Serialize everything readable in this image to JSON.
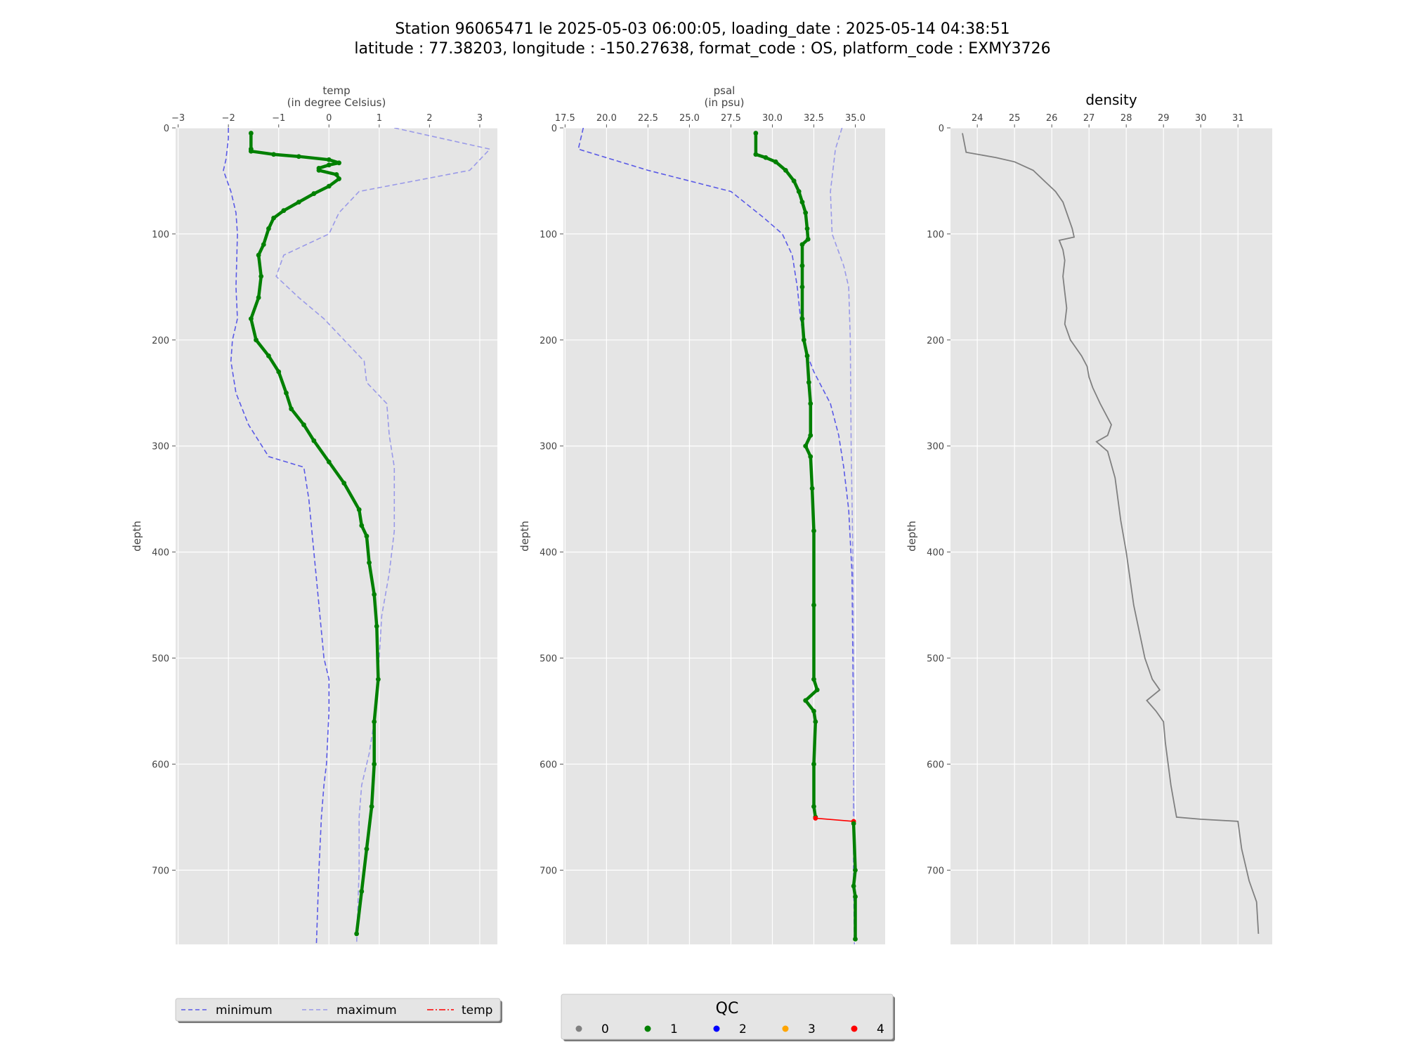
{
  "title": {
    "line1": "Station 96065471 le 2025-05-03 06:00:05, loading_date : 2025-05-14 04:38:51",
    "line2": "latitude : 77.38203, longitude : -150.27638, format_code : OS, platform_code : EXMY3726"
  },
  "colors": {
    "panel_bg": "#e5e5e5",
    "grid": "#ffffff",
    "minimum": "#5a5ae6",
    "maximum": "#9a9ae8",
    "qc0": "#808080",
    "qc1": "#008000",
    "qc2": "#0000ff",
    "qc3": "#ffa500",
    "qc4": "#ff0000",
    "density": "#808080"
  },
  "legend_lines": {
    "items": [
      {
        "label": "minimum",
        "style": "dashed",
        "color": "#5a5ae6"
      },
      {
        "label": "maximum",
        "style": "dashed",
        "color": "#9a9ae8"
      },
      {
        "label": "temp",
        "style": "dashdot",
        "color": "#ff0000"
      }
    ]
  },
  "legend_qc": {
    "title": "QC",
    "items": [
      {
        "label": "0",
        "color": "#808080"
      },
      {
        "label": "1",
        "color": "#008000"
      },
      {
        "label": "2",
        "color": "#0000ff"
      },
      {
        "label": "3",
        "color": "#ffa500"
      },
      {
        "label": "4",
        "color": "#ff0000"
      }
    ]
  },
  "chart_data": [
    {
      "type": "line",
      "name": "temp",
      "xlabel": "temp",
      "xlabel_unit": "(in degree Celsius)",
      "ylabel": "depth",
      "xlim": [
        -3.05,
        3.35
      ],
      "ylim": [
        770,
        0
      ],
      "xticks": [
        -3,
        -2,
        -1,
        0,
        1,
        2,
        3
      ],
      "yticks": [
        0,
        100,
        200,
        300,
        400,
        500,
        600,
        700
      ],
      "xaxis_position": "top",
      "grid": true,
      "series": [
        {
          "role": "minimum",
          "style": "dashed",
          "points": [
            [
              -2.0,
              0
            ],
            [
              -2.0,
              10
            ],
            [
              -2.05,
              30
            ],
            [
              -2.1,
              40
            ],
            [
              -1.95,
              60
            ],
            [
              -1.85,
              80
            ],
            [
              -1.82,
              100
            ],
            [
              -1.85,
              150
            ],
            [
              -1.82,
              180
            ],
            [
              -1.92,
              200
            ],
            [
              -1.95,
              220
            ],
            [
              -1.85,
              250
            ],
            [
              -1.6,
              280
            ],
            [
              -1.2,
              310
            ],
            [
              -0.5,
              320
            ],
            [
              -0.4,
              350
            ],
            [
              -0.3,
              400
            ],
            [
              -0.2,
              450
            ],
            [
              -0.1,
              500
            ],
            [
              0.0,
              520
            ],
            [
              0.0,
              550
            ],
            [
              -0.05,
              600
            ],
            [
              -0.1,
              620
            ],
            [
              -0.15,
              650
            ],
            [
              -0.2,
              700
            ],
            [
              -0.25,
              770
            ]
          ]
        },
        {
          "role": "maximum",
          "style": "dashed",
          "points": [
            [
              1.3,
              0
            ],
            [
              3.2,
              20
            ],
            [
              2.8,
              40
            ],
            [
              0.6,
              60
            ],
            [
              0.2,
              80
            ],
            [
              0.0,
              100
            ],
            [
              -0.9,
              120
            ],
            [
              -1.05,
              140
            ],
            [
              -0.6,
              160
            ],
            [
              -0.1,
              180
            ],
            [
              0.3,
              200
            ],
            [
              0.7,
              220
            ],
            [
              0.75,
              240
            ],
            [
              1.15,
              260
            ],
            [
              1.2,
              290
            ],
            [
              1.3,
              320
            ],
            [
              1.3,
              380
            ],
            [
              1.2,
              420
            ],
            [
              1.05,
              460
            ],
            [
              1.0,
              500
            ],
            [
              0.9,
              560
            ],
            [
              0.8,
              590
            ],
            [
              0.65,
              620
            ],
            [
              0.6,
              650
            ],
            [
              0.6,
              700
            ],
            [
              0.55,
              770
            ]
          ]
        },
        {
          "role": "temp",
          "qc": 1,
          "points": [
            [
              -1.55,
              5
            ],
            [
              -1.55,
              20
            ],
            [
              -1.55,
              22
            ],
            [
              -1.1,
              25
            ],
            [
              -0.6,
              27
            ],
            [
              0.0,
              30
            ],
            [
              0.2,
              33
            ],
            [
              0.0,
              35
            ],
            [
              -0.2,
              38
            ],
            [
              -0.2,
              40
            ],
            [
              0.15,
              44
            ],
            [
              0.2,
              48
            ],
            [
              0.0,
              55
            ],
            [
              -0.3,
              62
            ],
            [
              -0.6,
              70
            ],
            [
              -0.9,
              78
            ],
            [
              -1.1,
              85
            ],
            [
              -1.2,
              95
            ],
            [
              -1.3,
              110
            ],
            [
              -1.4,
              120
            ],
            [
              -1.35,
              140
            ],
            [
              -1.4,
              160
            ],
            [
              -1.55,
              180
            ],
            [
              -1.45,
              200
            ],
            [
              -1.2,
              215
            ],
            [
              -1.0,
              230
            ],
            [
              -0.85,
              250
            ],
            [
              -0.75,
              265
            ],
            [
              -0.5,
              280
            ],
            [
              -0.3,
              295
            ],
            [
              0.0,
              315
            ],
            [
              0.3,
              335
            ],
            [
              0.6,
              360
            ],
            [
              0.65,
              375
            ],
            [
              0.75,
              385
            ],
            [
              0.8,
              410
            ],
            [
              0.9,
              440
            ],
            [
              0.95,
              470
            ],
            [
              0.98,
              520
            ],
            [
              0.9,
              560
            ],
            [
              0.9,
              600
            ],
            [
              0.85,
              640
            ],
            [
              0.75,
              680
            ],
            [
              0.65,
              720
            ],
            [
              0.55,
              760
            ]
          ]
        }
      ]
    },
    {
      "type": "line",
      "name": "psal",
      "xlabel": "psal",
      "xlabel_unit": "(in psu)",
      "ylabel": "depth",
      "xlim": [
        17.4,
        36.8
      ],
      "ylim": [
        770,
        0
      ],
      "xticks": [
        17.5,
        20.0,
        22.5,
        25.0,
        27.5,
        30.0,
        32.5,
        35.0
      ],
      "xtick_labels": [
        "17.5",
        "20.0",
        "22.5",
        "25.0",
        "27.5",
        "30.0",
        "32.5",
        "35.0"
      ],
      "yticks": [
        0,
        100,
        200,
        300,
        400,
        500,
        600,
        700
      ],
      "xaxis_position": "top",
      "grid": true,
      "series": [
        {
          "role": "minimum",
          "style": "dashed",
          "points": [
            [
              18.6,
              0
            ],
            [
              18.3,
              20
            ],
            [
              22.5,
              40
            ],
            [
              27.5,
              60
            ],
            [
              29.5,
              85
            ],
            [
              30.6,
              100
            ],
            [
              31.2,
              120
            ],
            [
              31.5,
              150
            ],
            [
              31.7,
              180
            ],
            [
              32.0,
              210
            ],
            [
              32.5,
              230
            ],
            [
              33.5,
              260
            ],
            [
              34.0,
              290
            ],
            [
              34.3,
              320
            ],
            [
              34.6,
              360
            ],
            [
              34.8,
              420
            ],
            [
              34.85,
              500
            ],
            [
              34.9,
              600
            ],
            [
              34.9,
              700
            ],
            [
              34.95,
              770
            ]
          ]
        },
        {
          "role": "maximum",
          "style": "dashed",
          "points": [
            [
              34.2,
              0
            ],
            [
              33.8,
              20
            ],
            [
              33.5,
              60
            ],
            [
              33.6,
              100
            ],
            [
              34.3,
              130
            ],
            [
              34.6,
              150
            ],
            [
              34.7,
              200
            ],
            [
              34.75,
              300
            ],
            [
              34.85,
              400
            ],
            [
              34.9,
              500
            ],
            [
              34.9,
              600
            ],
            [
              34.95,
              700
            ],
            [
              34.95,
              770
            ]
          ]
        },
        {
          "role": "psal",
          "qc": 1,
          "points": [
            [
              29.0,
              5
            ],
            [
              29.0,
              25
            ],
            [
              29.6,
              28
            ],
            [
              30.2,
              32
            ],
            [
              30.8,
              40
            ],
            [
              31.3,
              50
            ],
            [
              31.6,
              60
            ],
            [
              31.8,
              70
            ],
            [
              32.0,
              80
            ],
            [
              32.1,
              95
            ],
            [
              32.15,
              105
            ],
            [
              31.8,
              110
            ],
            [
              31.8,
              130
            ],
            [
              31.8,
              150
            ],
            [
              31.8,
              180
            ],
            [
              31.9,
              200
            ],
            [
              32.1,
              215
            ],
            [
              32.2,
              240
            ],
            [
              32.3,
              260
            ],
            [
              32.3,
              290
            ],
            [
              32.0,
              300
            ],
            [
              32.3,
              310
            ],
            [
              32.4,
              340
            ],
            [
              32.5,
              380
            ],
            [
              32.5,
              450
            ],
            [
              32.5,
              520
            ],
            [
              32.7,
              530
            ],
            [
              32.0,
              540
            ],
            [
              32.5,
              550
            ],
            [
              32.6,
              560
            ],
            [
              32.5,
              600
            ],
            [
              32.5,
              640
            ],
            [
              32.6,
              650
            ]
          ]
        },
        {
          "role": "psal",
          "qc": 4,
          "points": [
            [
              32.6,
              651
            ],
            [
              34.9,
              654
            ]
          ]
        },
        {
          "role": "psal",
          "qc": 1,
          "points": [
            [
              34.9,
              656
            ],
            [
              35.0,
              700
            ],
            [
              34.9,
              715
            ],
            [
              35.0,
              725
            ],
            [
              35.0,
              765
            ]
          ]
        }
      ]
    },
    {
      "type": "line",
      "name": "density",
      "title": "density",
      "ylabel": "depth",
      "xlim": [
        23.28,
        31.92
      ],
      "ylim": [
        770,
        0
      ],
      "xticks": [
        24,
        25,
        26,
        27,
        28,
        29,
        30,
        31
      ],
      "yticks": [
        0,
        100,
        200,
        300,
        400,
        500,
        600,
        700
      ],
      "xaxis_position": "top",
      "grid": true,
      "series": [
        {
          "role": "density",
          "qc": 0,
          "points": [
            [
              23.6,
              5
            ],
            [
              23.7,
              23
            ],
            [
              24.5,
              28
            ],
            [
              25.0,
              32
            ],
            [
              25.5,
              40
            ],
            [
              25.8,
              50
            ],
            [
              26.1,
              60
            ],
            [
              26.3,
              70
            ],
            [
              26.4,
              80
            ],
            [
              26.55,
              95
            ],
            [
              26.6,
              103
            ],
            [
              26.2,
              106
            ],
            [
              26.3,
              115
            ],
            [
              26.35,
              125
            ],
            [
              26.3,
              140
            ],
            [
              26.35,
              155
            ],
            [
              26.4,
              170
            ],
            [
              26.35,
              185
            ],
            [
              26.5,
              200
            ],
            [
              26.8,
              215
            ],
            [
              26.95,
              225
            ],
            [
              27.0,
              235
            ],
            [
              27.1,
              245
            ],
            [
              27.3,
              260
            ],
            [
              27.6,
              280
            ],
            [
              27.5,
              290
            ],
            [
              27.2,
              296
            ],
            [
              27.5,
              305
            ],
            [
              27.7,
              330
            ],
            [
              27.85,
              370
            ],
            [
              28.0,
              400
            ],
            [
              28.2,
              450
            ],
            [
              28.5,
              500
            ],
            [
              28.7,
              520
            ],
            [
              28.9,
              530
            ],
            [
              28.55,
              540
            ],
            [
              28.8,
              550
            ],
            [
              29.0,
              560
            ],
            [
              29.05,
              580
            ],
            [
              29.2,
              620
            ],
            [
              29.3,
              640
            ],
            [
              29.35,
              650
            ],
            [
              30.0,
              652
            ],
            [
              31.0,
              654
            ],
            [
              31.1,
              680
            ],
            [
              31.3,
              710
            ],
            [
              31.4,
              720
            ],
            [
              31.5,
              730
            ],
            [
              31.55,
              760
            ]
          ]
        }
      ]
    }
  ]
}
